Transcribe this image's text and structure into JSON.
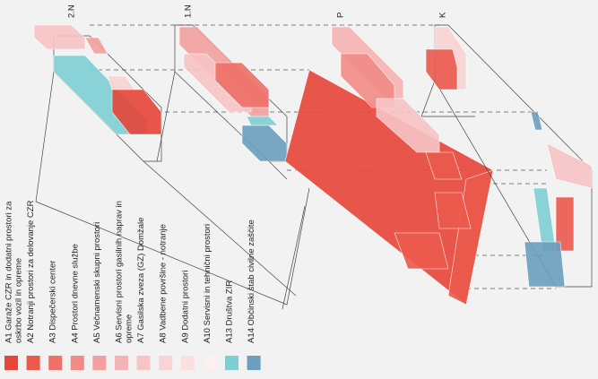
{
  "floors": [
    {
      "label": "2.N"
    },
    {
      "label": "1.N"
    },
    {
      "label": "P"
    },
    {
      "label": "K"
    }
  ],
  "legend": [
    {
      "lines": [
        "A1 Garaže CZR in dodatni prostori za",
        "oskrbo vozil in opreme"
      ],
      "color": "#e8463a"
    },
    {
      "lines": [
        "A2 Notranji prostori za delovanje CZR"
      ],
      "color": "#ec5a4e"
    },
    {
      "lines": [
        "A3 Dispečerski center"
      ],
      "color": "#ef7068"
    },
    {
      "lines": [
        "A4 Prostori dnevne službe"
      ],
      "color": "#f28a86"
    },
    {
      "lines": [
        "A5 Večnamenski skupni prostori"
      ],
      "color": "#f4a0a0"
    },
    {
      "lines": [
        "A6 Servisni prostori gasilnih naprav in",
        "opreme"
      ],
      "color": "#f6b3b5"
    },
    {
      "lines": [
        "A7 Gasilska zveza (GZ) Domžale"
      ],
      "color": "#f8c4c6"
    },
    {
      "lines": [
        "A8 Vadbene površine - notranje"
      ],
      "color": "#fad3d4"
    },
    {
      "lines": [
        "A9 Dodatni prostori"
      ],
      "color": "#fbe0e1"
    },
    {
      "lines": [
        "A10 Servisni in tehnični prostori"
      ],
      "color": "#fdf0f0"
    },
    {
      "lines": [
        "A13 Društva ZIR"
      ],
      "color": "#7dcfd6"
    },
    {
      "lines": [
        "A14 Občinski štab civilne zaščite"
      ],
      "color": "#6a9fbf"
    }
  ]
}
